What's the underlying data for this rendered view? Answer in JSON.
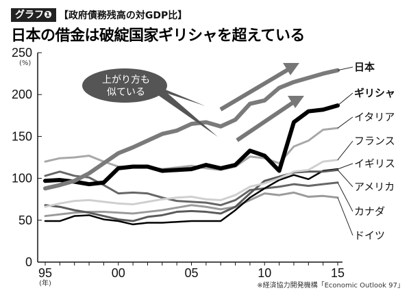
{
  "header": {
    "badge": "グラフ❶",
    "subtitle": "【政府債務残高の対GDP比】",
    "title": "日本の借金は破綻国家ギリシャを超えている"
  },
  "callout": {
    "line1": "上がり方も",
    "line2": "似ている"
  },
  "source": "※経済協力開発機構「Economic Outlook 97」",
  "chart_data": {
    "type": "line",
    "title": "日本の借金は破綻国家ギリシャを超えている",
    "ylabel": "(%)",
    "xlabel": "(年)",
    "ylim": [
      0,
      250
    ],
    "yticks": [
      0,
      50,
      100,
      150,
      200,
      250
    ],
    "xticks": [
      {
        "year": 1995,
        "label": "95"
      },
      {
        "year": 2000,
        "label": "00"
      },
      {
        "year": 2005,
        "label": "05"
      },
      {
        "year": 2010,
        "label": "10"
      },
      {
        "year": 2015,
        "label": "15"
      }
    ],
    "x": [
      1995,
      1996,
      1997,
      1998,
      1999,
      2000,
      2001,
      2002,
      2003,
      2004,
      2005,
      2006,
      2007,
      2008,
      2009,
      2010,
      2011,
      2012,
      2013,
      2014,
      2015
    ],
    "series": [
      {
        "name": "日本",
        "color": "#7a7a7a",
        "bold": true,
        "values": [
          88,
          92,
          97,
          106,
          118,
          130,
          137,
          145,
          153,
          157,
          165,
          167,
          162,
          170,
          189,
          193,
          208,
          215,
          220,
          225,
          229
        ]
      },
      {
        "name": "ギリシャ",
        "color": "#000000",
        "bold": true,
        "values": [
          97,
          98,
          96,
          93,
          95,
          112,
          114,
          114,
          109,
          110,
          111,
          116,
          112,
          116,
          133,
          127,
          109,
          167,
          180,
          182,
          187
        ]
      },
      {
        "name": "イタリア",
        "color": "#a8a8a8",
        "bold": false,
        "values": [
          120,
          124,
          125,
          127,
          120,
          114,
          113,
          113,
          111,
          113,
          115,
          112,
          110,
          114,
          126,
          124,
          118,
          138,
          145,
          158,
          160
        ]
      },
      {
        "name": "フランス",
        "color": "#cfcfcf",
        "bold": false,
        "values": [
          66,
          70,
          73,
          74,
          72,
          70,
          69,
          72,
          75,
          77,
          78,
          75,
          74,
          80,
          90,
          94,
          100,
          108,
          110,
          120,
          122
        ]
      },
      {
        "name": "イギリス",
        "color": "#000000",
        "bold": false,
        "values": [
          49,
          49,
          55,
          56,
          51,
          49,
          45,
          47,
          47,
          48,
          49,
          49,
          49,
          62,
          77,
          88,
          98,
          104,
          99,
          109,
          111
        ]
      },
      {
        "name": "アメリカ",
        "color": "#5a5a5a",
        "bold": false,
        "values": [
          68,
          66,
          62,
          59,
          55,
          51,
          49,
          54,
          56,
          60,
          61,
          60,
          58,
          66,
          82,
          97,
          102,
          107,
          108,
          108,
          110
        ]
      },
      {
        "name": "カナダ",
        "color": "#666666",
        "bold": false,
        "values": [
          103,
          108,
          103,
          101,
          92,
          82,
          83,
          82,
          77,
          73,
          72,
          71,
          68,
          74,
          86,
          88,
          90,
          93,
          91,
          93,
          95
        ]
      },
      {
        "name": "ドイツ",
        "color": "#9a9a9a",
        "bold": false,
        "values": [
          55,
          57,
          59,
          60,
          60,
          59,
          58,
          60,
          62,
          65,
          68,
          66,
          63,
          66,
          74,
          82,
          80,
          83,
          78,
          79,
          77
        ]
      }
    ]
  }
}
